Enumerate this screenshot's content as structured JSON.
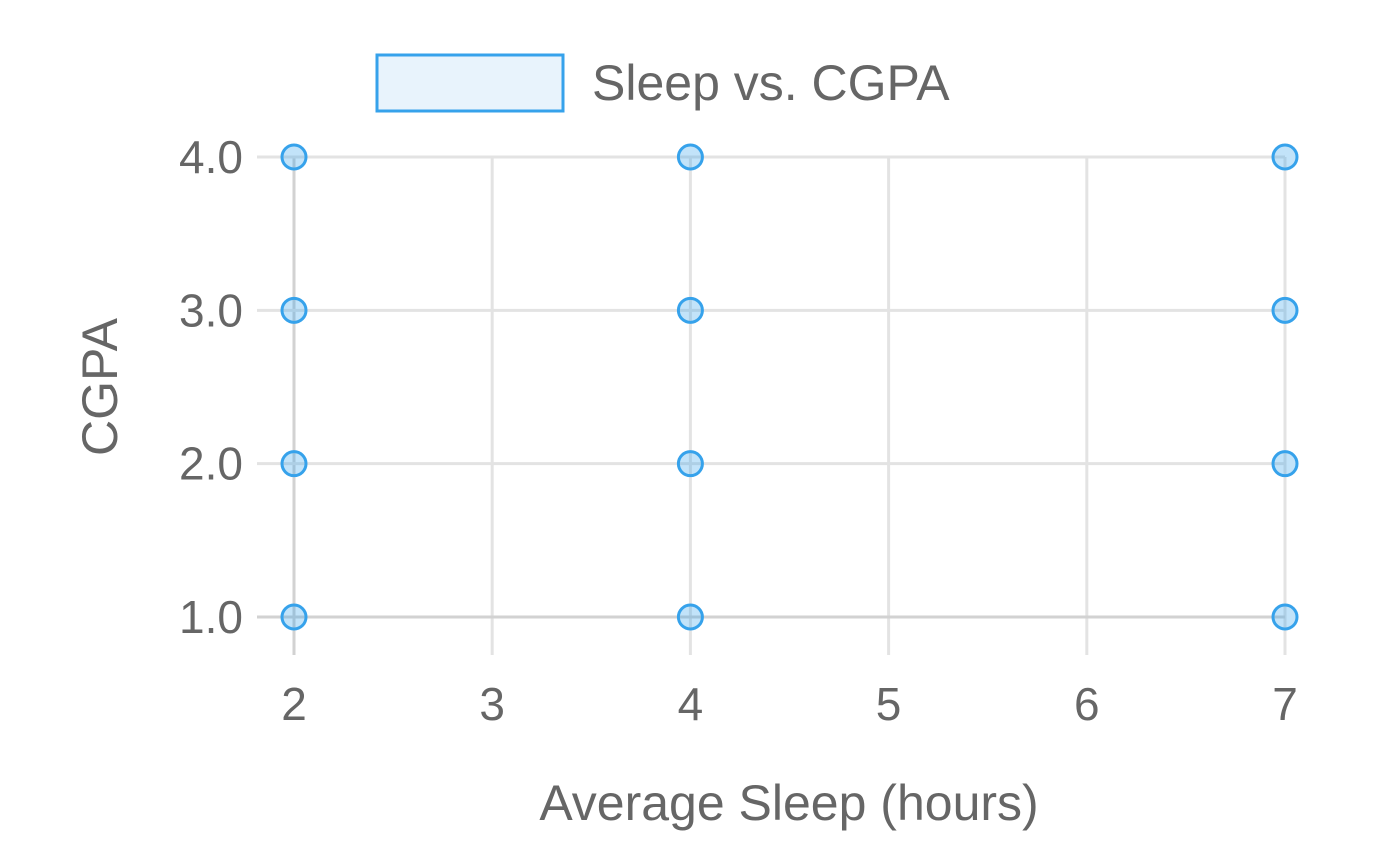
{
  "chart_data": {
    "type": "scatter",
    "title": "",
    "xlabel": "Average Sleep (hours)",
    "ylabel": "CGPA",
    "xlim": [
      2,
      7
    ],
    "ylim": [
      1.0,
      4.0
    ],
    "x_ticks": [
      "2",
      "3",
      "4",
      "5",
      "6",
      "7"
    ],
    "y_ticks": [
      "1.0",
      "2.0",
      "3.0",
      "4.0"
    ],
    "grid": true,
    "legend_position": "top-center",
    "series": [
      {
        "name": "Sleep vs. CGPA",
        "color": "#36a2eb",
        "fill_color": "#e8f3fc",
        "points": [
          {
            "x": 2,
            "y": 4.0
          },
          {
            "x": 2,
            "y": 3.0
          },
          {
            "x": 2,
            "y": 2.0
          },
          {
            "x": 2,
            "y": 1.0
          },
          {
            "x": 4,
            "y": 4.0
          },
          {
            "x": 4,
            "y": 3.0
          },
          {
            "x": 4,
            "y": 2.0
          },
          {
            "x": 4,
            "y": 1.0
          },
          {
            "x": 7,
            "y": 4.0
          },
          {
            "x": 7,
            "y": 3.0
          },
          {
            "x": 7,
            "y": 2.0
          },
          {
            "x": 7,
            "y": 1.0
          }
        ]
      }
    ]
  }
}
